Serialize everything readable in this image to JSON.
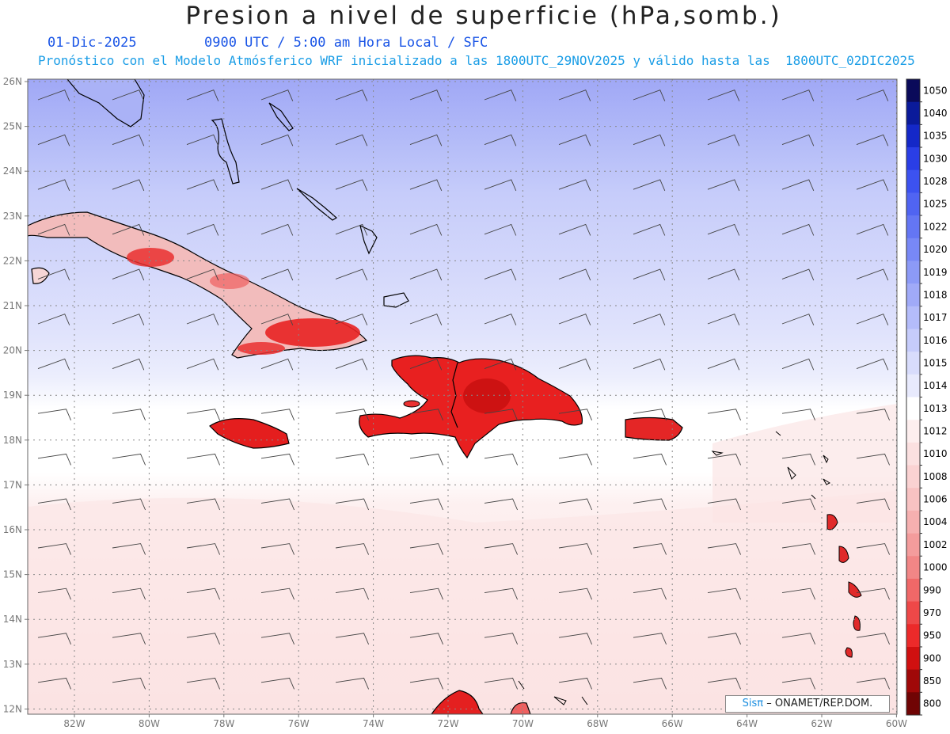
{
  "title": "Presion a nivel de superficie (hPa,somb.)",
  "date": "01-Dic-2025",
  "time_info": "0900 UTC / 5:00 am Hora Local / SFC",
  "forecast_info": "Pronóstico con el Modelo Atmósferico WRF inicializado a las 1800UTC_29NOV2025 y válido hasta las  1800UTC_02DIC2025",
  "credit": {
    "brand": "Sisπ",
    "text": "– ONAMET/REP.DOM."
  },
  "lat_labels": [
    "26N",
    "25N",
    "24N",
    "23N",
    "22N",
    "21N",
    "20N",
    "19N",
    "18N",
    "17N",
    "16N",
    "15N",
    "14N",
    "13N",
    "12N"
  ],
  "lon_labels": [
    "82W",
    "80W",
    "78W",
    "76W",
    "74W",
    "72W",
    "70W",
    "68W",
    "66W",
    "64W",
    "62W",
    "60W"
  ],
  "colorbar": {
    "levels": [
      "1050",
      "1040",
      "1035",
      "1030",
      "1028",
      "1025",
      "1022",
      "1020",
      "1019",
      "1018",
      "1017",
      "1016",
      "1015",
      "1014",
      "1013",
      "1012",
      "1010",
      "1008",
      "1006",
      "1004",
      "1002",
      "1000",
      "990",
      "970",
      "950",
      "900",
      "850",
      "800"
    ],
    "colors": [
      "#0a0a5a",
      "#0a1a9a",
      "#1428c8",
      "#2a3ee6",
      "#3c52f0",
      "#5064f2",
      "#6476f4",
      "#7888f6",
      "#8c9af7",
      "#a0aaf8",
      "#b4bcfa",
      "#c6ccfb",
      "#d8dcfc",
      "#e8eafd",
      "#ffffff",
      "#fdeeee",
      "#fbe0e0",
      "#fad2d2",
      "#f8c2c2",
      "#f6b0b0",
      "#f49c9c",
      "#f28686",
      "#f06868",
      "#ee4848",
      "#ec2a2a",
      "#d01010",
      "#a00808",
      "#700404"
    ]
  }
}
